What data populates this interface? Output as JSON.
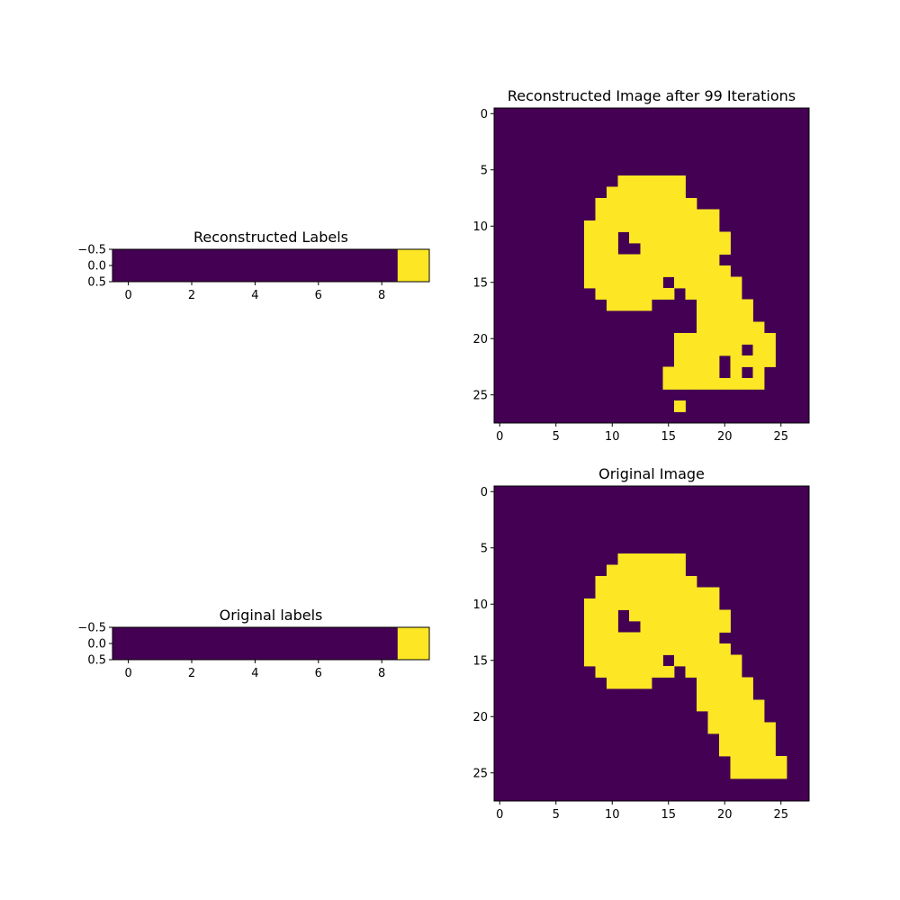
{
  "colors": {
    "background": "#440154",
    "foreground": "#fde725",
    "axis": "#000000"
  },
  "chart_data": [
    {
      "id": "recon-labels",
      "type": "heatmap",
      "title": "Reconstructed Labels",
      "shape": [
        1,
        10
      ],
      "xticks": [
        0,
        2,
        4,
        6,
        8
      ],
      "yticks": [
        -0.5,
        0.0,
        0.5
      ],
      "xlim": [
        -0.5,
        9.5
      ],
      "ylim": [
        0.5,
        -0.5
      ],
      "rows": [
        "0000000001"
      ]
    },
    {
      "id": "recon-image",
      "type": "heatmap",
      "title": "Reconstructed Image after 99 Iterations",
      "shape": [
        28,
        28
      ],
      "xticks": [
        0,
        5,
        10,
        15,
        20,
        25
      ],
      "yticks": [
        0,
        5,
        10,
        15,
        20,
        25
      ],
      "xlim": [
        -0.5,
        27.5
      ],
      "ylim": [
        27.5,
        -0.5
      ],
      "rows": [
        "0000000000000000000000000000",
        "0000000000000000000000000000",
        "0000000000000000000000000000",
        "0000000000000000000000000000",
        "0000000000000000000000000000",
        "0000000000000000000000000000",
        "0000000000011111100000000000",
        "0000000000111111100000000000",
        "0000000001111111110000000000",
        "0000000001111111111100000000",
        "0000000011111111111100000000",
        "0000000011101111111110000000",
        "0000000011100111111110000000",
        "0000000011111111111100000000",
        "0000000011111111111110000000",
        "0000000011111110111111000000",
        "0000000001111111011111000000",
        "0000000000111100001111100000",
        "0000000000000000001111100000",
        "0000000000000000001111110000",
        "0000000000000000111111111000",
        "0000000000000000111111011000",
        "0000000000000000111101111000",
        "0000000000000001111101010000",
        "0000000000000001111111110000",
        "0000000000000000000000000000",
        "0000000000000000100000000000",
        "0000000000000000000000000000"
      ]
    },
    {
      "id": "orig-labels",
      "type": "heatmap",
      "title": "Original labels",
      "shape": [
        1,
        10
      ],
      "xticks": [
        0,
        2,
        4,
        6,
        8
      ],
      "yticks": [
        -0.5,
        0.0,
        0.5
      ],
      "xlim": [
        -0.5,
        9.5
      ],
      "ylim": [
        0.5,
        -0.5
      ],
      "rows": [
        "0000000001"
      ]
    },
    {
      "id": "orig-image",
      "type": "heatmap",
      "title": "Original Image",
      "shape": [
        28,
        28
      ],
      "xticks": [
        0,
        5,
        10,
        15,
        20,
        25
      ],
      "yticks": [
        0,
        5,
        10,
        15,
        20,
        25
      ],
      "xlim": [
        -0.5,
        27.5
      ],
      "ylim": [
        27.5,
        -0.5
      ],
      "rows": [
        "0000000000000000000000000000",
        "0000000000000000000000000000",
        "0000000000000000000000000000",
        "0000000000000000000000000000",
        "0000000000000000000000000000",
        "0000000000000000000000000000",
        "0000000000011111100000000000",
        "0000000000111111100000000000",
        "0000000001111111110000000000",
        "0000000001111111111100000000",
        "0000000011111111111100000000",
        "0000000011101111111110000000",
        "0000000011100111111110000000",
        "0000000011111111111100000000",
        "0000000011111111111110000000",
        "0000000011111110111111000000",
        "0000000001111111011111000000",
        "0000000000111100001111100000",
        "0000000000000000001111100000",
        "0000000000000000001111110000",
        "0000000000000000000111110000",
        "0000000000000000000111111000",
        "0000000000000000000011111000",
        "0000000000000000000011111000",
        "0000000000000000000001111100",
        "0000000000000000000001111100",
        "0000000000000000000000000000",
        "0000000000000000000000000000"
      ]
    }
  ]
}
